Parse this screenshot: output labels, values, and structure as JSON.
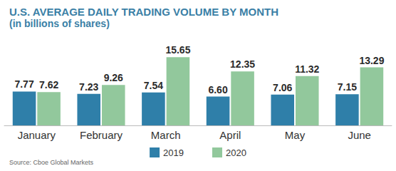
{
  "chart_data": {
    "type": "bar",
    "title": "U.S. AVERAGE DAILY TRADING VOLUME BY MONTH",
    "subtitle": "(in billions of shares)",
    "annotations": [
      "Source: Cboe Global Markets"
    ],
    "categories": [
      "January",
      "February",
      "March",
      "April",
      "May",
      "June"
    ],
    "series": [
      {
        "name": "2019",
        "color": "#2f7fa9",
        "values": [
          7.77,
          7.23,
          7.54,
          6.6,
          7.06,
          7.15
        ],
        "value_labels": [
          "7.77",
          "7.23",
          "7.54",
          "6.60",
          "7.06",
          "7.15"
        ]
      },
      {
        "name": "2020",
        "color": "#92c89c",
        "values": [
          7.62,
          9.26,
          15.65,
          12.35,
          11.32,
          13.29
        ]
      }
    ],
    "ylim": [
      0,
      16
    ],
    "grid": false,
    "legend": "bottom",
    "data_labels": true,
    "tick_labels": "x"
  }
}
